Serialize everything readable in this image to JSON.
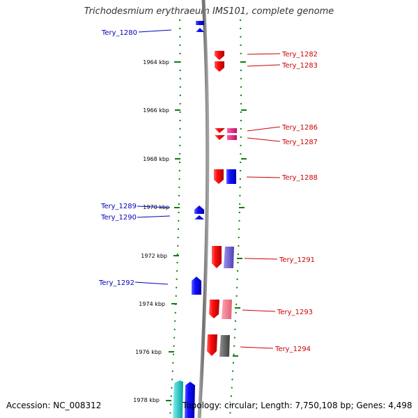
{
  "title": "Trichodesmium erythraeum IMS101, complete genome",
  "footer": {
    "accession": "Accession: NC_008312",
    "topology": "Topology: circular; Length: 7,750,108 bp; Genes: 4,498"
  },
  "colors": {
    "backbone": "#808080",
    "tick": "#0a7d0a",
    "minus_strand_label": "#0000bb",
    "plus_strand_label": "#cc0000",
    "gene_red": "#e81010",
    "gene_blue": "#1010e8",
    "gene_pink": "#e0207a",
    "gene_purple": "#7060d0",
    "gene_lightred": "#f07080",
    "gene_gray": "#606060",
    "gene_cyan": "#10c8c8"
  },
  "scale_labels": [
    "1964 kbp",
    "1966 kbp",
    "1968 kbp",
    "1970 kbp",
    "1972 kbp",
    "1974 kbp",
    "1976 kbp",
    "1978 kbp"
  ],
  "genes": [
    {
      "name": "Tery_1280",
      "strand": "minus",
      "color": "gene_blue"
    },
    {
      "name": "Tery_1282",
      "strand": "plus",
      "color": "gene_red"
    },
    {
      "name": "Tery_1283",
      "strand": "plus",
      "color": "gene_red"
    },
    {
      "name": "Tery_1286",
      "strand": "plus",
      "color": "gene_red"
    },
    {
      "name": "Tery_1287",
      "strand": "plus",
      "color": "gene_pink"
    },
    {
      "name": "Tery_1288",
      "strand": "plus",
      "color": "gene_red"
    },
    {
      "name": "Tery_1289",
      "strand": "minus",
      "color": "gene_blue"
    },
    {
      "name": "Tery_1290",
      "strand": "minus",
      "color": "gene_blue"
    },
    {
      "name": "Tery_1291",
      "strand": "plus",
      "color": "gene_red"
    },
    {
      "name": "Tery_1292",
      "strand": "minus",
      "color": "gene_blue"
    },
    {
      "name": "Tery_1293",
      "strand": "plus",
      "color": "gene_red"
    },
    {
      "name": "Tery_1294",
      "strand": "plus",
      "color": "gene_red"
    }
  ]
}
